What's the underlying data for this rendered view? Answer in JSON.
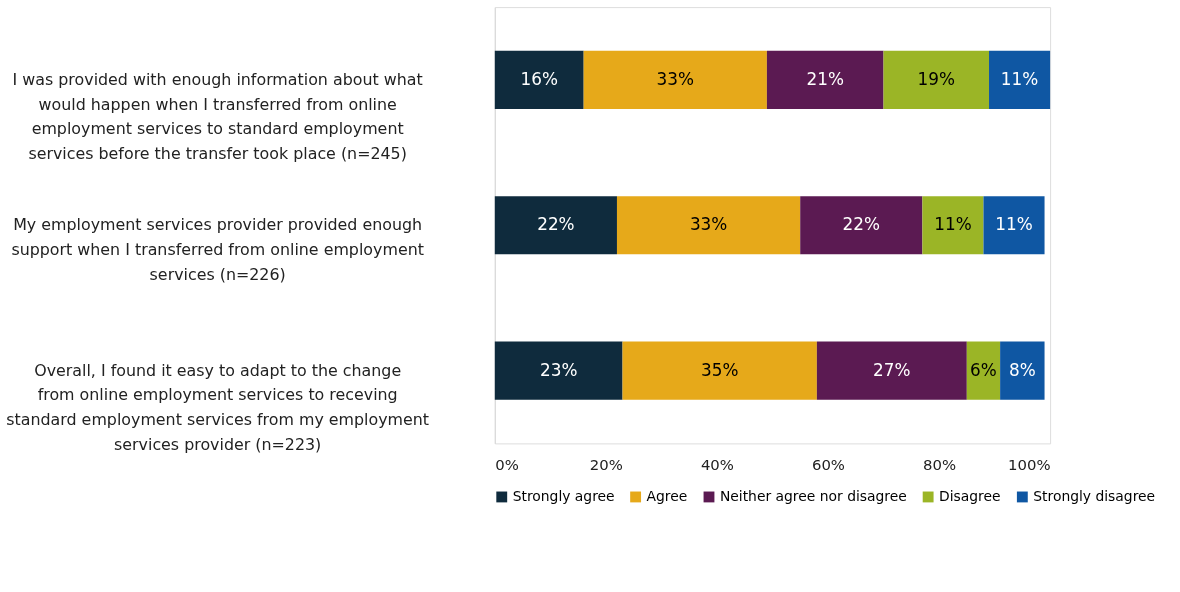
{
  "chart_data": {
    "type": "bar",
    "orientation": "horizontal",
    "stacked": true,
    "categories": [
      "I was provided with enough information about what would happen when I transferred from online employment services to standard employment services before the transfer took place (n=245)",
      "My employment services provider provided enough support when I transferred from online employment services (n=226)",
      "Overall, I found it easy to adapt to the change from online employment services to receving standard employment services from my employment services provider (n=223)"
    ],
    "series": [
      {
        "name": "Strongly agree",
        "color": "#0f2b3d",
        "values": [
          16,
          22,
          23
        ],
        "value_labels": [
          "16%",
          "22%",
          "23%"
        ]
      },
      {
        "name": "Agree",
        "color": "#e6a91a",
        "values": [
          33,
          33,
          35
        ],
        "value_labels": [
          "33%",
          "33%",
          "35%"
        ]
      },
      {
        "name": "Neither agree nor disagree",
        "color": "#5b1a52",
        "values": [
          21,
          22,
          27
        ],
        "value_labels": [
          "21%",
          "22%",
          "27%"
        ]
      },
      {
        "name": "Disagree",
        "color": "#9bb526",
        "values": [
          19,
          11,
          6
        ],
        "value_labels": [
          "19%",
          "11%",
          "6%"
        ]
      },
      {
        "name": "Strongly disagree",
        "color": "#0f57a3",
        "values": [
          11,
          11,
          8
        ],
        "value_labels": [
          "11%",
          "11%",
          "8%"
        ]
      }
    ],
    "xlim": [
      0,
      100
    ],
    "xticks": [
      {
        "value": 0,
        "label": "0%"
      },
      {
        "value": 20,
        "label": "20%"
      },
      {
        "value": 40,
        "label": "40%"
      },
      {
        "value": 60,
        "label": "60%"
      },
      {
        "value": 80,
        "label": "80%"
      },
      {
        "value": 100,
        "label": "100%"
      }
    ],
    "grid": false,
    "legend": "bottom"
  }
}
